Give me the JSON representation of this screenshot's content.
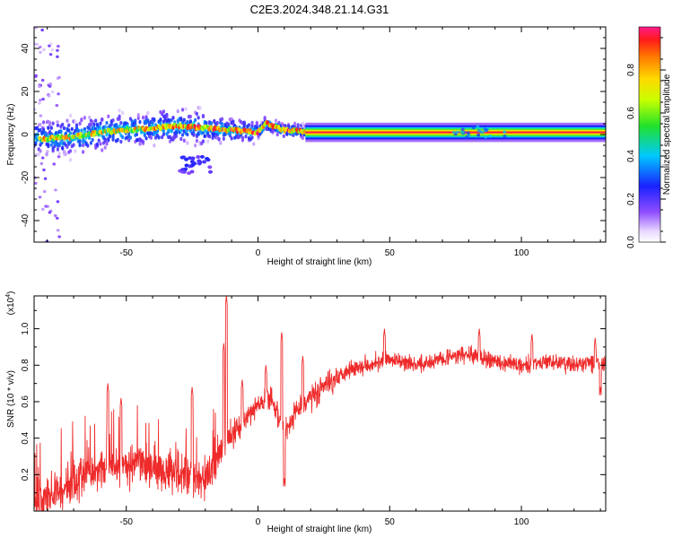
{
  "page_title": "C2E3.2024.348.21.14.G31",
  "colors": {
    "snr_line": "#ee2a2a",
    "axis": "#000000",
    "background": "#ffffff"
  },
  "chart_data": [
    {
      "type": "heatmap",
      "title": "C2E3.2024.348.21.14.G31",
      "xlabel": "Height of straight line (km)",
      "ylabel": "Frequency (Hz)",
      "xlim": [
        -85,
        132
      ],
      "ylim": [
        -50,
        50
      ],
      "x_ticks": [
        -50,
        0,
        50,
        100
      ],
      "y_ticks": [
        -40,
        -20,
        0,
        20,
        40
      ],
      "colorbar": {
        "label": "Normalized spectral amplitude",
        "range": [
          0,
          1
        ],
        "ticks": [
          0.0,
          0.2,
          0.4,
          0.6,
          0.8
        ],
        "colormap": "rainbow (white-purple-blue-cyan-green-yellow-orange-red-magenta)"
      },
      "ridge": [
        {
          "x": -80,
          "freq": -2
        },
        {
          "x": -70,
          "freq": -1
        },
        {
          "x": -60,
          "freq": 1
        },
        {
          "x": -50,
          "freq": 2
        },
        {
          "x": -40,
          "freq": 3
        },
        {
          "x": -30,
          "freq": 4
        },
        {
          "x": -20,
          "freq": 3
        },
        {
          "x": -10,
          "freq": 2
        },
        {
          "x": 0,
          "freq": 1
        },
        {
          "x": 3,
          "freq": 5
        },
        {
          "x": 10,
          "freq": 2
        },
        {
          "x": 20,
          "freq": 1
        },
        {
          "x": 60,
          "freq": 1
        },
        {
          "x": 78,
          "freq": 2
        },
        {
          "x": 100,
          "freq": 1
        },
        {
          "x": 132,
          "freq": 1
        }
      ],
      "secondary_patch": {
        "x_range": [
          -30,
          -18
        ],
        "freq_range": [
          -18,
          -10
        ]
      },
      "scatter_region": {
        "x_range": [
          -85,
          -75
        ],
        "freq_range": [
          -50,
          50
        ]
      }
    },
    {
      "type": "line",
      "xlabel": "Height of straight line (km)",
      "ylabel": "SNR (10 * v/v)",
      "scale_label": "(x10",
      "scale_exponent": "4",
      "xlim": [
        -85,
        132
      ],
      "ylim": [
        0.0,
        1.18
      ],
      "x_ticks": [
        -50,
        0,
        50,
        100
      ],
      "y_ticks": [
        0.2,
        0.4,
        0.6,
        0.8,
        1.0
      ],
      "y_tick_labels": [
        "0.2",
        "0.4",
        "0.6",
        "0.8",
        "1.0"
      ],
      "trend": [
        {
          "x": -85,
          "snr": 0.05
        },
        {
          "x": -80,
          "snr": 0.08
        },
        {
          "x": -70,
          "snr": 0.16
        },
        {
          "x": -60,
          "snr": 0.24
        },
        {
          "x": -50,
          "snr": 0.26
        },
        {
          "x": -40,
          "snr": 0.24
        },
        {
          "x": -30,
          "snr": 0.22
        },
        {
          "x": -20,
          "snr": 0.16
        },
        {
          "x": -15,
          "snr": 0.3
        },
        {
          "x": -10,
          "snr": 0.42
        },
        {
          "x": -5,
          "snr": 0.5
        },
        {
          "x": 0,
          "snr": 0.58
        },
        {
          "x": 5,
          "snr": 0.62
        },
        {
          "x": 10,
          "snr": 0.44
        },
        {
          "x": 15,
          "snr": 0.55
        },
        {
          "x": 20,
          "snr": 0.63
        },
        {
          "x": 25,
          "snr": 0.68
        },
        {
          "x": 30,
          "snr": 0.74
        },
        {
          "x": 35,
          "snr": 0.78
        },
        {
          "x": 40,
          "snr": 0.8
        },
        {
          "x": 50,
          "snr": 0.83
        },
        {
          "x": 60,
          "snr": 0.8
        },
        {
          "x": 70,
          "snr": 0.84
        },
        {
          "x": 80,
          "snr": 0.86
        },
        {
          "x": 90,
          "snr": 0.82
        },
        {
          "x": 100,
          "snr": 0.8
        },
        {
          "x": 110,
          "snr": 0.82
        },
        {
          "x": 120,
          "snr": 0.8
        },
        {
          "x": 132,
          "snr": 0.82
        }
      ],
      "spikes": [
        {
          "x": -57,
          "snr": 0.7
        },
        {
          "x": -52,
          "snr": 0.62
        },
        {
          "x": -25,
          "snr": 0.68
        },
        {
          "x": -13,
          "snr": 0.92
        },
        {
          "x": -12,
          "snr": 1.18
        },
        {
          "x": -6,
          "snr": 0.72
        },
        {
          "x": 3,
          "snr": 0.8
        },
        {
          "x": 9,
          "snr": 0.98
        },
        {
          "x": 10,
          "snr": 0.18
        },
        {
          "x": 17,
          "snr": 0.85
        },
        {
          "x": 48,
          "snr": 1.0
        },
        {
          "x": 84,
          "snr": 1.0
        },
        {
          "x": 104,
          "snr": 0.97
        },
        {
          "x": 128,
          "snr": 0.95
        },
        {
          "x": 130,
          "snr": 0.68
        }
      ]
    }
  ]
}
